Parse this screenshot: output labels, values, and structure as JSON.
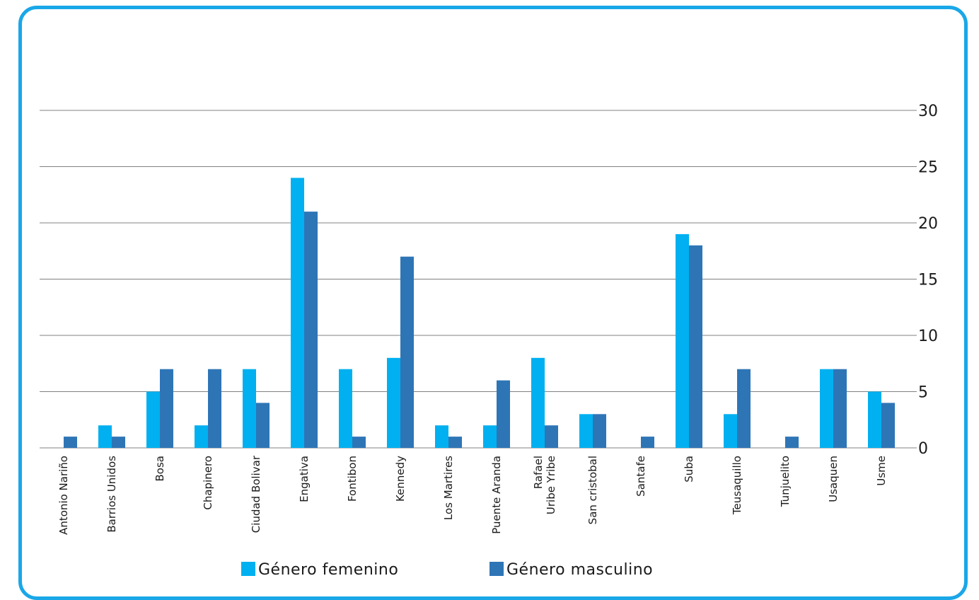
{
  "chart_data": {
    "type": "bar",
    "categories": [
      "Antonio Nariño",
      "Barrios Unidos",
      "Bosa",
      "Chapinero",
      "Ciudad Bolivar",
      "Engativa",
      "Fontibon",
      "Kennedy",
      "Los Martires",
      "Puente Aranda",
      "Rafael Uribe Yribe",
      "San cristobal",
      "Santafe",
      "Suba",
      "Teusaquillo",
      "Tunjuelito",
      "Usaquen",
      "Usme"
    ],
    "category_lines": [
      [
        "Antonio Nariño"
      ],
      [
        "Barrios Unidos"
      ],
      [
        "Bosa"
      ],
      [
        "Chapinero"
      ],
      [
        "Ciudad Bolivar"
      ],
      [
        "Engativa"
      ],
      [
        "Fontibon"
      ],
      [
        "Kennedy"
      ],
      [
        "Los Martires"
      ],
      [
        "Puente Aranda"
      ],
      [
        "Rafael",
        "Uribe Yribe"
      ],
      [
        "San cristobal"
      ],
      [
        "Santafe"
      ],
      [
        "Suba"
      ],
      [
        "Teusaquillo"
      ],
      [
        "Tunjuelito"
      ],
      [
        "Usaquen"
      ],
      [
        "Usme"
      ]
    ],
    "series": [
      {
        "name": "Género femenino",
        "color": "#00b0f0",
        "values": [
          0,
          2,
          5,
          2,
          7,
          24,
          7,
          8,
          2,
          2,
          8,
          3,
          0,
          19,
          3,
          0,
          7,
          5
        ]
      },
      {
        "name": "Género masculino",
        "color": "#2e75b6",
        "values": [
          1,
          1,
          7,
          7,
          4,
          21,
          1,
          17,
          1,
          6,
          2,
          3,
          1,
          18,
          7,
          1,
          7,
          4
        ]
      }
    ],
    "ylim": [
      0,
      30
    ],
    "yticks": [
      "0",
      "5",
      "10",
      "15",
      "20",
      "25",
      "30"
    ],
    "y_axis_side": "right",
    "grid": true,
    "legend_position": "bottom",
    "title": "",
    "xlabel": "",
    "ylabel": ""
  },
  "frame_color": "#1aa7e8",
  "gridline_color": "#808080"
}
